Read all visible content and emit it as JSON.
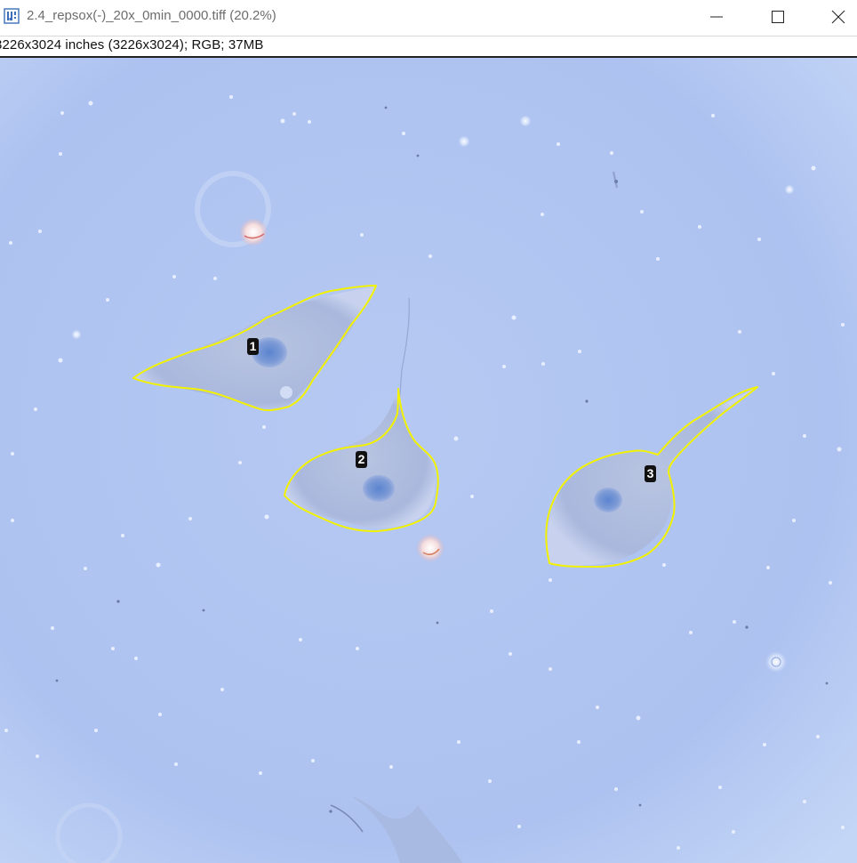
{
  "window": {
    "title": "2.4_repsox(-)_20x_0min_0000.tiff (20.2%)",
    "app_icon": "imagej-icon",
    "controls": [
      "minimize-icon",
      "maximize-icon",
      "close-icon"
    ]
  },
  "info_bar": {
    "text": "3226x3024 inches (3226x3024); RGB; 37MB"
  },
  "image": {
    "roi_color": "#f2f200",
    "background_color": "#b3c7f1",
    "rois": [
      {
        "label": "1"
      },
      {
        "label": "2"
      },
      {
        "label": "3"
      }
    ]
  }
}
